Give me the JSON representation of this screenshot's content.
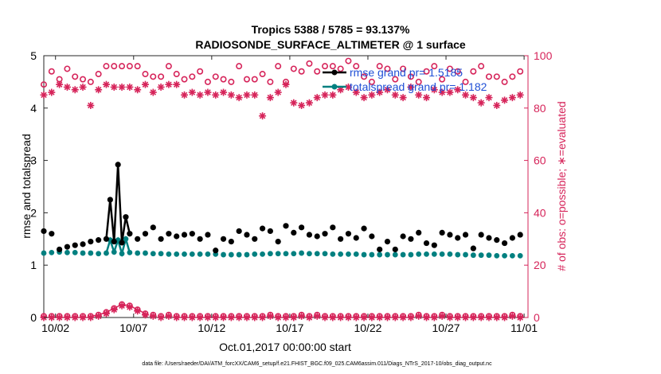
{
  "chart_data": {
    "type": "line",
    "title": "Tropics 5388 / 5785 = 93.137%",
    "subtitle": "RADIOSONDE_SURFACE_ALTIMETER @ 1 surface",
    "xlabel": "Oct.01,2017 00:00:00 start",
    "ylabel": "rmse and totalspread",
    "ylabel_right": "# of obs: o=possible; ∗=evaluated",
    "footer": "data file: /Users/raeder/DAI/ATM_forcXX/CAM6_setup/f.e21.FHIST_BGC.f09_025.CAM6assim.011/Diags_NTrS_2017-10/obs_diag_output.nc",
    "x_tick_labels": [
      "10/02",
      "10/07",
      "10/12",
      "10/17",
      "10/22",
      "10/27",
      "11/01"
    ],
    "x_tick_days": [
      2,
      7,
      12,
      17,
      22,
      27,
      32
    ],
    "xlim": [
      1.25,
      32.25
    ],
    "ylim": [
      0,
      5
    ],
    "y_ticks": [
      0,
      1,
      2,
      3,
      4,
      5
    ],
    "ylim_right": [
      0,
      100
    ],
    "y_ticks_right": [
      0,
      20,
      40,
      60,
      80,
      100
    ],
    "colors": {
      "rmse": "#000000",
      "spread": "#008080",
      "obs": "#d6245a",
      "legend_text": "#1f4fd6"
    },
    "legend": [
      {
        "name": "rmse",
        "label": "rmse grand pr= 1.5185"
      },
      {
        "name": "totalspread",
        "label": "totalspread grand pr= 1.182"
      }
    ],
    "series": [
      {
        "name": "rmse",
        "x": [
          1.25,
          1.75,
          2.25,
          2.75,
          3.25,
          3.75,
          4.25,
          4.75,
          5.25,
          5.5,
          5.75,
          6.0,
          6.25,
          6.5,
          6.75,
          7.25,
          7.75,
          8.25,
          8.75,
          9.25,
          9.75,
          10.25,
          10.75,
          11.25,
          11.75,
          12.25,
          12.75,
          13.25,
          13.75,
          14.25,
          14.75,
          15.25,
          15.75,
          16.25,
          16.75,
          17.25,
          17.75,
          18.25,
          18.75,
          19.25,
          19.75,
          20.25,
          20.75,
          21.25,
          21.75,
          22.25,
          22.75,
          23.25,
          23.75,
          24.25,
          24.75,
          25.25,
          25.75,
          26.25,
          26.75,
          27.25,
          27.75,
          28.25,
          28.75,
          29.25,
          29.75,
          30.25,
          30.75,
          31.25,
          31.75
        ],
        "values": [
          1.65,
          1.6,
          1.3,
          1.35,
          1.38,
          1.4,
          1.45,
          1.48,
          1.5,
          2.25,
          1.45,
          2.92,
          1.43,
          1.92,
          1.6,
          1.5,
          1.6,
          1.72,
          1.5,
          1.6,
          1.55,
          1.58,
          1.6,
          1.5,
          1.58,
          1.28,
          1.5,
          1.45,
          1.65,
          1.58,
          1.5,
          1.7,
          1.65,
          1.45,
          1.75,
          1.62,
          1.72,
          1.58,
          1.55,
          1.6,
          1.72,
          1.5,
          1.6,
          1.52,
          1.7,
          1.55,
          1.3,
          1.45,
          1.3,
          1.55,
          1.5,
          1.62,
          1.42,
          1.38,
          1.62,
          1.58,
          1.52,
          1.58,
          1.32,
          1.58,
          1.52,
          1.48,
          1.42,
          1.52,
          1.58
        ],
        "markers_only_indices": [
          0,
          1,
          2,
          3,
          4,
          5,
          6,
          7,
          8,
          16,
          17,
          18,
          19,
          20,
          21,
          22,
          23,
          24,
          25,
          26,
          27,
          28,
          29,
          30,
          31,
          32,
          33,
          34,
          35,
          36,
          37,
          38,
          39,
          40,
          41,
          42,
          43,
          44,
          45,
          46,
          47,
          48,
          49,
          50,
          51,
          52,
          53,
          54,
          55,
          56,
          57,
          58,
          59,
          60,
          61,
          62,
          63,
          64
        ]
      },
      {
        "name": "totalspread",
        "x": [
          1.25,
          1.75,
          2.25,
          2.75,
          3.25,
          3.75,
          4.25,
          4.75,
          5.25,
          5.5,
          5.75,
          6.0,
          6.25,
          6.5,
          6.75,
          7.25,
          7.75,
          8.25,
          8.75,
          9.25,
          9.75,
          10.25,
          10.75,
          11.25,
          11.75,
          12.25,
          12.75,
          13.25,
          13.75,
          14.25,
          14.75,
          15.25,
          15.75,
          16.25,
          16.75,
          17.25,
          17.75,
          18.25,
          18.75,
          19.25,
          19.75,
          20.25,
          20.75,
          21.25,
          21.75,
          22.25,
          22.75,
          23.25,
          23.75,
          24.25,
          24.75,
          25.25,
          25.75,
          26.25,
          26.75,
          27.25,
          27.75,
          28.25,
          28.75,
          29.25,
          29.75,
          30.25,
          30.75,
          31.25,
          31.75
        ],
        "values": [
          1.23,
          1.24,
          1.25,
          1.24,
          1.24,
          1.23,
          1.23,
          1.22,
          1.23,
          1.48,
          1.25,
          1.48,
          1.22,
          1.5,
          1.24,
          1.23,
          1.23,
          1.22,
          1.22,
          1.21,
          1.21,
          1.21,
          1.21,
          1.21,
          1.21,
          1.21,
          1.2,
          1.2,
          1.2,
          1.2,
          1.21,
          1.21,
          1.22,
          1.22,
          1.22,
          1.22,
          1.23,
          1.22,
          1.22,
          1.22,
          1.21,
          1.21,
          1.21,
          1.21,
          1.2,
          1.2,
          1.2,
          1.2,
          1.2,
          1.2,
          1.2,
          1.21,
          1.21,
          1.21,
          1.21,
          1.21,
          1.2,
          1.2,
          1.19,
          1.19,
          1.19,
          1.18,
          1.18,
          1.18,
          1.18
        ]
      },
      {
        "name": "obs_possible",
        "axis": "right",
        "x": [
          1.25,
          1.75,
          2.25,
          2.75,
          3.25,
          3.75,
          4.25,
          4.75,
          5.25,
          5.75,
          6.25,
          6.75,
          7.25,
          7.75,
          8.25,
          8.75,
          9.25,
          9.75,
          10.25,
          10.75,
          11.25,
          11.75,
          12.25,
          12.75,
          13.25,
          13.75,
          14.25,
          14.75,
          15.25,
          15.75,
          16.25,
          16.75,
          17.25,
          17.75,
          18.25,
          18.75,
          19.25,
          19.75,
          20.25,
          20.75,
          21.25,
          21.75,
          22.25,
          22.75,
          23.25,
          23.75,
          24.25,
          24.75,
          25.25,
          25.75,
          26.25,
          26.75,
          27.25,
          27.75,
          28.25,
          28.75,
          29.25,
          29.75,
          30.25,
          30.75,
          31.25,
          31.75
        ],
        "values": [
          89,
          94,
          91,
          95,
          92,
          91,
          90,
          93,
          96,
          96,
          96,
          96,
          96,
          93,
          92,
          92,
          96,
          93,
          91,
          92,
          94,
          90,
          92,
          91,
          90,
          96,
          91,
          91,
          93,
          90,
          96,
          90,
          95,
          94,
          97,
          94,
          96,
          96,
          95,
          98,
          96,
          92,
          90,
          96,
          95,
          91,
          95,
          92,
          90,
          94,
          96,
          91,
          95,
          94,
          90,
          94,
          96,
          92,
          92,
          90,
          92,
          94
        ],
        "zero_row": [
          0.5,
          0.5,
          0.5,
          0.5,
          0.5,
          0.5,
          0.5,
          1,
          2,
          3.5,
          5,
          4.5,
          3,
          1.5,
          1,
          0.5,
          1,
          0.5,
          0.5,
          0.5,
          0.5,
          0.5,
          0.5,
          0.5,
          0.5,
          0.5,
          0.5,
          0.5,
          0.5,
          1,
          0.5,
          0.5,
          0.5,
          1,
          0.5,
          1,
          0.5,
          0.5,
          0.5,
          0.5,
          0.5,
          0.5,
          0.5,
          0.5,
          0.5,
          0.5,
          0.5,
          0.5,
          1,
          0.5,
          0.5,
          1,
          0.5,
          0.5,
          0.5,
          0.5,
          0.5,
          0.5,
          0.5,
          0.5,
          1,
          0.5
        ]
      },
      {
        "name": "obs_evaluated",
        "axis": "right",
        "x": [
          1.25,
          1.75,
          2.25,
          2.75,
          3.25,
          3.75,
          4.25,
          4.75,
          5.25,
          5.75,
          6.25,
          6.75,
          7.25,
          7.75,
          8.25,
          8.75,
          9.25,
          9.75,
          10.25,
          10.75,
          11.25,
          11.75,
          12.25,
          12.75,
          13.25,
          13.75,
          14.25,
          14.75,
          15.25,
          15.75,
          16.25,
          16.75,
          17.25,
          17.75,
          18.25,
          18.75,
          19.25,
          19.75,
          20.25,
          20.75,
          21.25,
          21.75,
          22.25,
          22.75,
          23.25,
          23.75,
          24.25,
          24.75,
          25.25,
          25.75,
          26.25,
          26.75,
          27.25,
          27.75,
          28.25,
          28.75,
          29.25,
          29.75,
          30.25,
          30.75,
          31.25,
          31.75
        ],
        "values": [
          85,
          86,
          89,
          88,
          87,
          88,
          81,
          87,
          89,
          88,
          88,
          88,
          87,
          89,
          86,
          88,
          89,
          89,
          85,
          86,
          85,
          86,
          85,
          86,
          85,
          84,
          85,
          85,
          77,
          84,
          86,
          89,
          82,
          81,
          82,
          84,
          85,
          85,
          87,
          88,
          86,
          84,
          85,
          86,
          87,
          85,
          84,
          88,
          85,
          84,
          87,
          86,
          86,
          87,
          85,
          84,
          82,
          84,
          81,
          83,
          84,
          85
        ],
        "zero_row": [
          0,
          0,
          0,
          0,
          0,
          0,
          0,
          0.5,
          1.5,
          3,
          4.5,
          4,
          2.5,
          1,
          0.5,
          0,
          0.5,
          0,
          0,
          0,
          0,
          0,
          0,
          0,
          0,
          0,
          0,
          0,
          0,
          0.5,
          0,
          0,
          0,
          0.5,
          0,
          0.5,
          0,
          0,
          0,
          0,
          0,
          0,
          0,
          0,
          0,
          0,
          0,
          0,
          0.5,
          0,
          0,
          0.5,
          0,
          0,
          0,
          0,
          0,
          0,
          0,
          0,
          0.5,
          0
        ]
      }
    ]
  }
}
